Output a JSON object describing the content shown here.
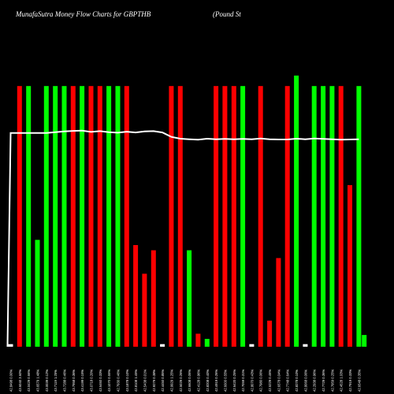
{
  "header": {
    "title": "MunafaSutra Money Flow Charts for GBPTHB",
    "title_right": "(Pound St"
  },
  "chart_data": {
    "type": "bar",
    "title": "MunafaSutra Money Flow Charts for GBPTHB",
    "categories": [
      "42.8498 0.00%",
      "43.6040 3.60%",
      "43.0429 0.66%",
      "43.6579 1.48%",
      "43.0039 0.12%",
      "43.7119 1.25%",
      "43.7288 0.46%",
      "43.7958 0.36%",
      "43.4199 0.15%",
      "43.0718 0.20%",
      "43.6460 0.33%",
      "43.1070 0.55%",
      "42.7930 0.46%",
      "43.1878 0.10%",
      "42.8108 1.45%",
      "42.5438 0.01%",
      "42.9279 0.38%",
      "42.4450 0.85%",
      "42.9929 1.25%",
      "42.5029 0.26%",
      "42.6608 0.06%",
      "42.4128 0.96%",
      "42.8208 0.40%",
      "42.4919 0.26%",
      "42.6000 0.55%",
      "42.6420 0.25%",
      "42.7059 0.31%",
      "42.8070 0.43%",
      "42.7980 0.06%",
      "42.5229 0.46%",
      "42.6578 0.04%",
      "42.7748 0.64%",
      "42.8278 0.10%",
      "42.8068 0.06%",
      "42.2938 0.96%",
      "42.7729 0.36%",
      "42.7959 0.25%",
      "42.4528 1.03%",
      "42.7919 0.33%",
      "42.6548 0.35%"
    ],
    "colors": [
      "#00ff00",
      "#ff0000",
      "#ffffff"
    ],
    "series": [
      {
        "values": [
          1,
          100,
          100,
          41,
          100,
          100,
          100,
          100,
          100,
          100,
          100,
          100,
          100,
          100,
          39,
          28,
          37,
          1,
          100,
          100,
          37,
          5,
          3,
          100,
          100,
          100,
          100,
          1,
          100,
          10,
          34,
          100,
          104,
          1,
          100,
          100,
          100,
          100,
          62,
          100
        ],
        "colors": [
          "w",
          "r",
          "g",
          "g",
          "g",
          "g",
          "g",
          "r",
          "g",
          "r",
          "r",
          "g",
          "g",
          "r",
          "r",
          "r",
          "r",
          "w",
          "r",
          "r",
          "g",
          "r",
          "g",
          "r",
          "r",
          "r",
          "g",
          "w",
          "r",
          "r",
          "r",
          "r",
          "g",
          "w",
          "g",
          "g",
          "g",
          "r",
          "r",
          "g"
        ]
      }
    ],
    "extra_bars": [
      {
        "index": 39.6,
        "value": 4.5,
        "color": "g"
      }
    ],
    "line": [
      82,
      82,
      82,
      82,
      82,
      82.3,
      82.6,
      82.8,
      82.9,
      82.4,
      82.7,
      82.3,
      82.1,
      82.5,
      82.2,
      82.6,
      82.7,
      82.2,
      80.5,
      79.8,
      79.6,
      79.4,
      79.8,
      79.6,
      79.7,
      79.6,
      79.7,
      79.6,
      79.9,
      79.6,
      79.5,
      79.5,
      79.8,
      79.6,
      79.9,
      79.7,
      79.6,
      79.4,
      79.5,
      79.6
    ],
    "line_start": 0,
    "ylim": [
      0,
      133
    ]
  }
}
